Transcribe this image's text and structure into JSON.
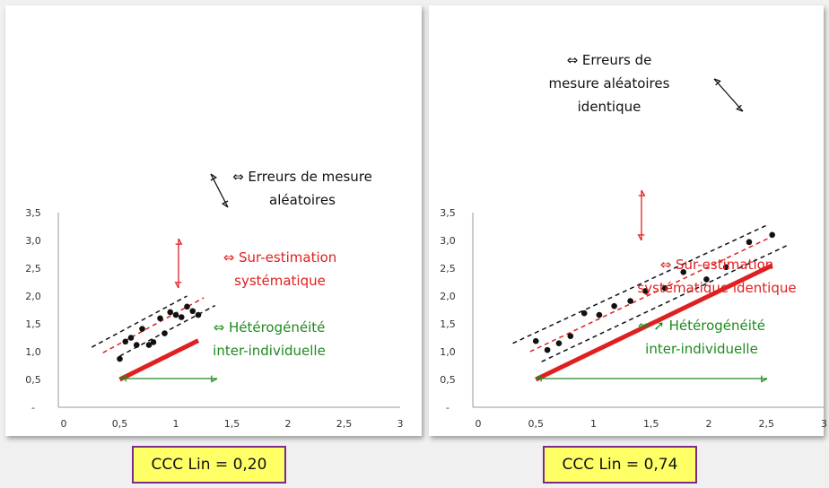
{
  "chart_data": [
    {
      "type": "scatter",
      "title": "",
      "xlabel": "",
      "ylabel": "",
      "xlim": [
        0,
        3
      ],
      "ylim": [
        0,
        3.5
      ],
      "x_ticks": [
        "0",
        "0,5",
        "1",
        "1,5",
        "2",
        "2,5",
        "3"
      ],
      "y_ticks": [
        "-",
        "0,5",
        "1,0",
        "1,5",
        "2,0",
        "2,5",
        "3,0",
        "3,5"
      ],
      "points": [
        {
          "x": 0.5,
          "y": 0.87
        },
        {
          "x": 0.55,
          "y": 1.18
        },
        {
          "x": 0.6,
          "y": 1.25
        },
        {
          "x": 0.65,
          "y": 1.12
        },
        {
          "x": 0.7,
          "y": 1.41
        },
        {
          "x": 0.76,
          "y": 1.12
        },
        {
          "x": 0.8,
          "y": 1.17
        },
        {
          "x": 0.86,
          "y": 1.6
        },
        {
          "x": 0.9,
          "y": 1.33
        },
        {
          "x": 0.95,
          "y": 1.71
        },
        {
          "x": 1.0,
          "y": 1.66
        },
        {
          "x": 1.05,
          "y": 1.62
        },
        {
          "x": 1.1,
          "y": 1.81
        },
        {
          "x": 1.15,
          "y": 1.73
        },
        {
          "x": 1.2,
          "y": 1.66
        }
      ],
      "lines": {
        "upper_band": {
          "x": [
            0.25,
            1.1
          ],
          "y": [
            1.08,
            2.0
          ]
        },
        "lower_band": {
          "x": [
            0.5,
            1.35
          ],
          "y": [
            0.92,
            1.83
          ]
        },
        "fit": {
          "x": [
            0.35,
            1.25
          ],
          "y": [
            0.98,
            1.97
          ]
        },
        "true_line": {
          "x": [
            0.5,
            1.2
          ],
          "y": [
            0.5,
            1.2
          ]
        }
      },
      "annotations": {
        "random_error": "⇔ Erreurs de mesure\naléatoires",
        "bias": "⇔ Sur-estimation\nsystématique",
        "heterogeneity": "⇔ Hétérogénéité\ninter-individuelle"
      },
      "ccc_label": "CCC Lin = 0,20"
    },
    {
      "type": "scatter",
      "title": "",
      "xlabel": "",
      "ylabel": "",
      "xlim": [
        0,
        3
      ],
      "ylim": [
        0,
        3.5
      ],
      "x_ticks": [
        "0",
        "0,5",
        "1",
        "1,5",
        "2",
        "2,5",
        "3"
      ],
      "y_ticks": [
        "-",
        "0,5",
        "1,0",
        "1,5",
        "2,0",
        "2,5",
        "3,0",
        "3,5"
      ],
      "points": [
        {
          "x": 0.5,
          "y": 1.19
        },
        {
          "x": 0.6,
          "y": 1.03
        },
        {
          "x": 0.7,
          "y": 1.15
        },
        {
          "x": 0.8,
          "y": 1.28
        },
        {
          "x": 0.92,
          "y": 1.69
        },
        {
          "x": 1.05,
          "y": 1.66
        },
        {
          "x": 1.18,
          "y": 1.82
        },
        {
          "x": 1.32,
          "y": 1.91
        },
        {
          "x": 1.45,
          "y": 2.09
        },
        {
          "x": 1.62,
          "y": 2.14
        },
        {
          "x": 1.78,
          "y": 2.43
        },
        {
          "x": 1.98,
          "y": 2.3
        },
        {
          "x": 2.15,
          "y": 2.52
        },
        {
          "x": 2.35,
          "y": 2.97
        },
        {
          "x": 2.55,
          "y": 3.1
        }
      ],
      "lines": {
        "upper_band": {
          "x": [
            0.3,
            2.5
          ],
          "y": [
            1.15,
            3.27
          ]
        },
        "lower_band": {
          "x": [
            0.55,
            2.7
          ],
          "y": [
            0.82,
            2.93
          ]
        },
        "fit": {
          "x": [
            0.45,
            2.6
          ],
          "y": [
            1.0,
            3.12
          ]
        },
        "true_line": {
          "x": [
            0.5,
            2.55
          ],
          "y": [
            0.5,
            2.55
          ]
        }
      },
      "annotations": {
        "random_error": "⇔ Erreurs de\nmesure aléatoires\nidentique",
        "bias": "⇔ Sur-estimation\nsystématique identique",
        "heterogeneity": "⇔ ➚ Hétérogénéité\ninter-individuelle"
      },
      "ccc_label": "CCC Lin = 0,74"
    }
  ],
  "colors": {
    "black": "#111111",
    "red": "#e02020",
    "green": "#1e8a1e",
    "axis": "#9a9a9a"
  }
}
